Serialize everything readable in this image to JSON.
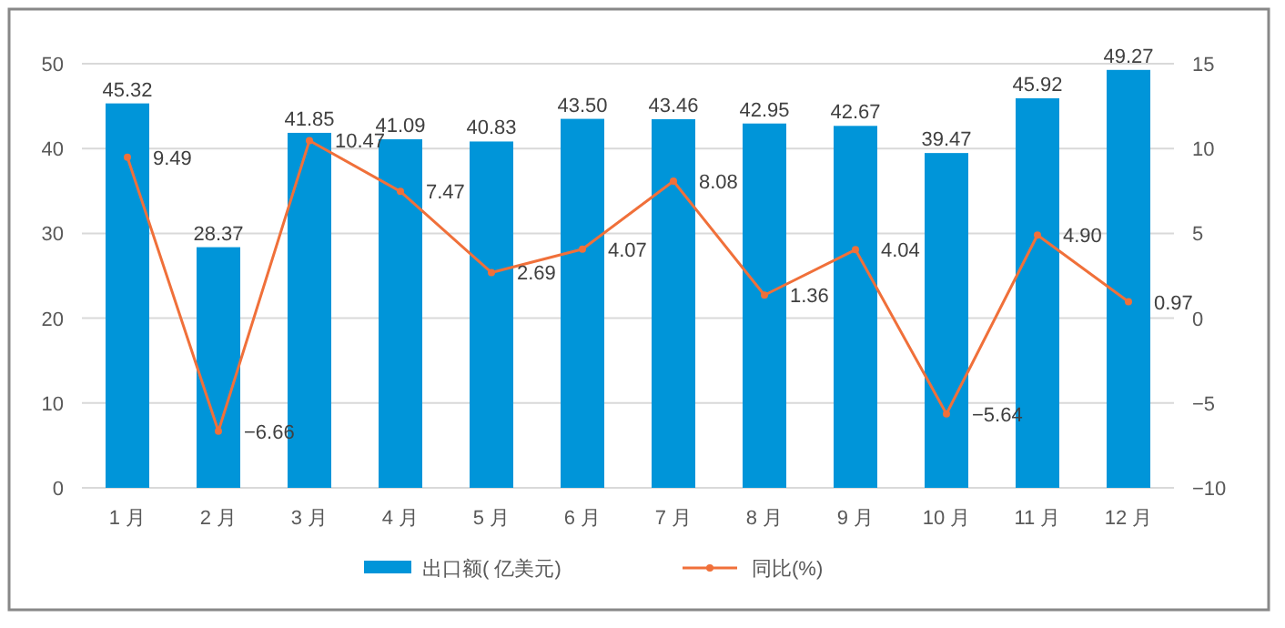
{
  "chart_data": {
    "type": "bar",
    "categories": [
      "1 月",
      "2 月",
      "3 月",
      "4 月",
      "5 月",
      "6 月",
      "7 月",
      "8 月",
      "9 月",
      "10 月",
      "11 月",
      "12 月"
    ],
    "series": [
      {
        "name": "出口额( 亿美元)",
        "color": "#0095d9",
        "values": [
          45.32,
          28.37,
          41.85,
          41.09,
          40.83,
          43.5,
          43.46,
          42.95,
          42.67,
          39.47,
          45.92,
          49.27
        ],
        "value_labels": [
          "45.32",
          "28.37",
          "41.85",
          "41.09",
          "40.83",
          "43.50",
          "43.46",
          "42.95",
          "42.67",
          "39.47",
          "45.92",
          "49.27"
        ]
      },
      {
        "name": "同比(%)",
        "type": "line",
        "axis": "y2",
        "color": "#f0703a",
        "marker": "circle",
        "values": [
          9.49,
          -6.66,
          10.47,
          7.47,
          2.69,
          4.07,
          8.08,
          1.36,
          4.04,
          -5.64,
          4.9,
          0.97
        ],
        "value_labels": [
          "9.49",
          "−6.66",
          "10.47",
          "7.47",
          "2.69",
          "4.07",
          "8.08",
          "1.36",
          "4.04",
          "−5.64",
          "4.90",
          "0.97"
        ]
      }
    ],
    "ylim": [
      0,
      50
    ],
    "yticks": [
      0,
      10,
      20,
      30,
      40,
      50
    ],
    "y2lim": [
      -10,
      15
    ],
    "y2ticks": [
      {
        "value": -10,
        "label": "−10"
      },
      {
        "value": -5,
        "label": "−5"
      },
      0,
      5,
      10,
      15
    ],
    "grid": "y",
    "legend": "bottom"
  }
}
